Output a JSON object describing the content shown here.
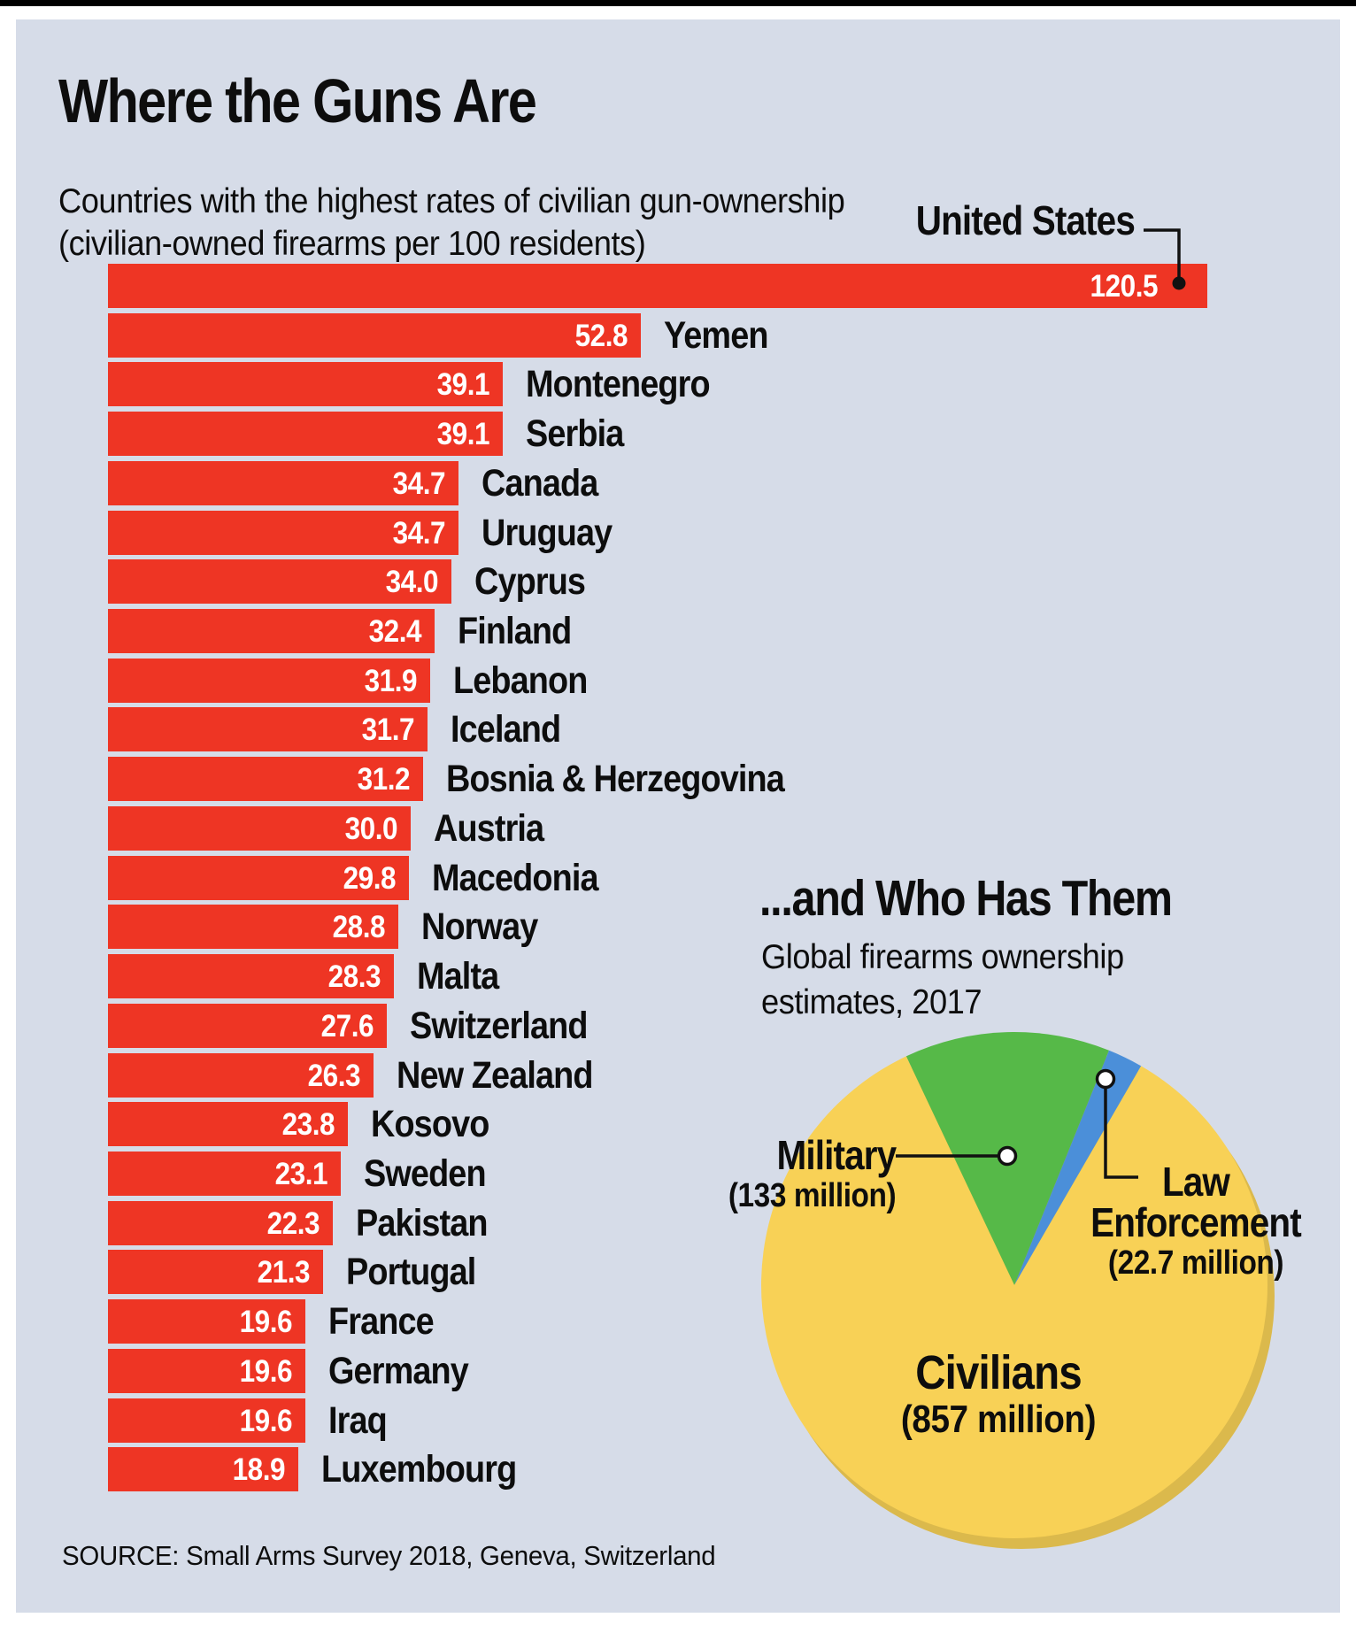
{
  "colors": {
    "panel_bg": "#D6DCE8",
    "bar_red": "#EE3524",
    "pie_yellow": "#F8D156",
    "pie_green": "#56B948",
    "pie_blue": "#4B8FD9",
    "pie_shadow": "#DBB94C",
    "value_text": "#FFFFFF",
    "text": "#0D0D0D"
  },
  "header": {
    "title": "Where the Guns Are",
    "subtitle_line1": "Countries with the highest rates of civilian gun-ownership",
    "subtitle_line2": "(civilian-owned firearms per 100 residents)"
  },
  "source": "SOURCE: Small Arms Survey 2018, Geneva, Switzerland",
  "chart_data": [
    {
      "type": "bar",
      "orientation": "horizontal",
      "title": "Where the Guns Are",
      "subtitle": "Countries with the highest rates of civilian gun-ownership (civilian-owned firearms per 100 residents)",
      "unit": "civilian-owned firearms per 100 residents",
      "bar_color": "#EE3524",
      "categories": [
        "United States",
        "Yemen",
        "Montenegro",
        "Serbia",
        "Canada",
        "Uruguay",
        "Cyprus",
        "Finland",
        "Lebanon",
        "Iceland",
        "Bosnia & Herzegovina",
        "Austria",
        "Macedonia",
        "Norway",
        "Malta",
        "Switzerland",
        "New Zealand",
        "Kosovo",
        "Sweden",
        "Pakistan",
        "Portugal",
        "France",
        "Germany",
        "Iraq",
        "Luxembourg"
      ],
      "values": [
        120.5,
        52.8,
        39.1,
        39.1,
        34.7,
        34.7,
        34.0,
        32.4,
        31.9,
        31.7,
        31.2,
        30.0,
        29.8,
        28.8,
        28.3,
        27.6,
        26.3,
        23.8,
        23.1,
        22.3,
        21.3,
        19.6,
        19.6,
        19.6,
        18.9
      ],
      "value_labels": [
        "120.5",
        "52.8",
        "39.1",
        "39.1",
        "34.7",
        "34.7",
        "34.0",
        "32.4",
        "31.9",
        "31.7",
        "31.2",
        "30.0",
        "29.8",
        "28.8",
        "28.3",
        "27.6",
        "26.3",
        "23.8",
        "23.1",
        "22.3",
        "21.3",
        "19.6",
        "19.6",
        "19.6",
        "18.9"
      ],
      "annotation": {
        "label": "United States",
        "value": 120.5
      }
    },
    {
      "type": "pie",
      "title": "...and Who Has Them",
      "subtitle_line1": "Global firearms ownership",
      "subtitle_line2": "estimates, 2017",
      "legend_position": "callout-labels",
      "slices": [
        {
          "label": "Civilians",
          "label_line1": "Civilians",
          "label_line2": "",
          "amount_label": "(857 million)",
          "value_millions": 857,
          "color": "#F8D156"
        },
        {
          "label": "Military",
          "label_line1": "Military",
          "label_line2": "",
          "amount_label": "(133 million)",
          "value_millions": 133,
          "color": "#56B948"
        },
        {
          "label": "Law Enforcement",
          "label_line1": "Law",
          "label_line2": "Enforcement",
          "amount_label": "(22.7 million)",
          "value_millions": 22.7,
          "color": "#4B8FD9"
        }
      ]
    }
  ]
}
